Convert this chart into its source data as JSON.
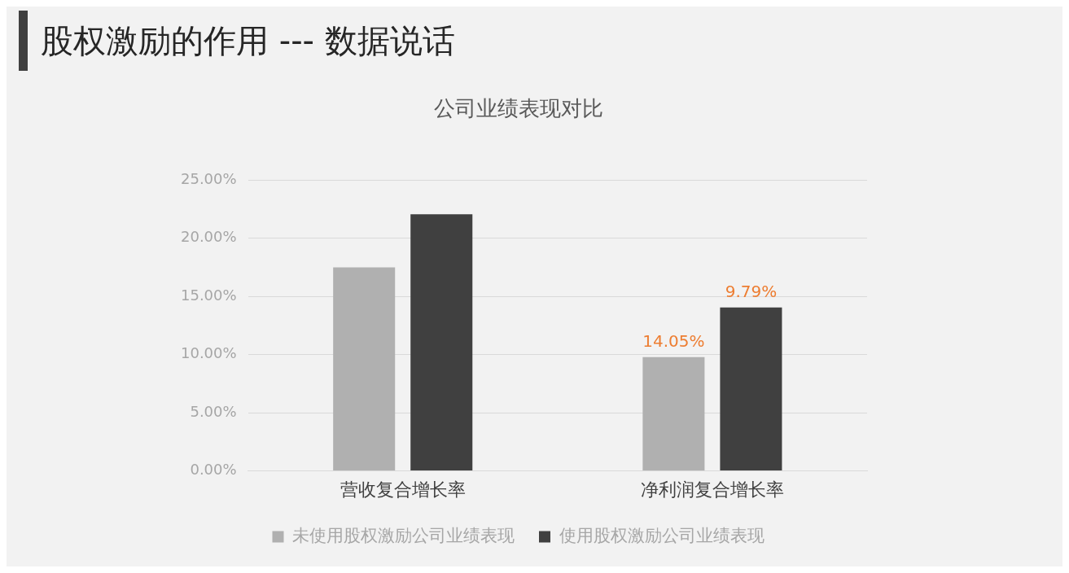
{
  "chart_data": {
    "type": "bar",
    "title": "股权激励的作用 --- 数据说话",
    "subtitle": "公司业绩表现对比",
    "categories": [
      "营收复合增长率",
      "净利润复合增长率"
    ],
    "series": [
      {
        "name": "未使用股权激励公司业绩表现",
        "color": "#b0b0b0",
        "values": [
          17.5,
          9.79
        ]
      },
      {
        "name": "使用股权激励公司业绩表现",
        "color": "#404040",
        "values": [
          22.05,
          14.05
        ]
      }
    ],
    "annotations": [
      "14.05%",
      "9.79%"
    ],
    "ylim": [
      0,
      25
    ],
    "yticks": [
      {
        "value": 0,
        "label": "0.00%"
      },
      {
        "value": 5,
        "label": "5.00%"
      },
      {
        "value": 10,
        "label": "10.00%"
      },
      {
        "value": 15,
        "label": "15.00%"
      },
      {
        "value": 20,
        "label": "20.00%"
      },
      {
        "value": 25,
        "label": "25.00%"
      }
    ],
    "grid": "y",
    "legend": "bottom"
  }
}
